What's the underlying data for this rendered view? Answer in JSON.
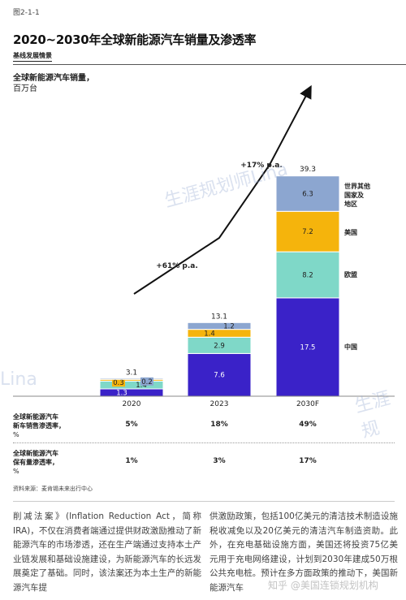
{
  "figure_number": "图2-1-1",
  "title": "2020~2030年全球新能源汽车销量及渗透率",
  "scenario_label": "基线发展情景",
  "y_label_line1": "全球新能源汽车销量，",
  "y_label_line2": "百万台",
  "colors": {
    "china": "#3a22c8",
    "europe": "#7fd8c8",
    "usa": "#f5b40c",
    "rest": "#8ca6d0"
  },
  "chart_data": {
    "type": "bar",
    "stacked": true,
    "categories": [
      "2020",
      "2023",
      "2030F"
    ],
    "series": [
      {
        "name": "中国",
        "values": [
          1.3,
          7.6,
          17.5
        ]
      },
      {
        "name": "欧盟",
        "values": [
          1.4,
          2.9,
          8.2
        ]
      },
      {
        "name": "美国",
        "values": [
          0.3,
          1.4,
          7.2
        ]
      },
      {
        "name": "世界其他国家及地区",
        "values": [
          0.2,
          1.2,
          6.3
        ]
      }
    ],
    "totals": [
      3.1,
      13.1,
      39.3
    ],
    "growth_annotations": [
      "+61% p.a.",
      "+17% p.a."
    ],
    "ylim": [
      0,
      39.3
    ]
  },
  "legend": {
    "rest_line1": "世界其他",
    "rest_line2": "国家及",
    "rest_line3": "地区",
    "usa": "美国",
    "europe": "欧盟",
    "china": "中国"
  },
  "rows": [
    {
      "label1": "全球新能源汽车",
      "label2": "新车销售渗透率，",
      "unit": "%",
      "values": [
        "5%",
        "18%",
        "49%"
      ]
    },
    {
      "label1": "全球新能源汽车",
      "label2": "保有量渗透率，",
      "unit": "%",
      "values": [
        "1%",
        "3%",
        "17%"
      ]
    }
  ],
  "source": "资料来源：麦肯锡未来出行中心",
  "body_left": "削减法案》(Inflation Reduction Act，简称IRA)，不仅在消费者端通过提供财政激励推动了新能源汽车的市场渗透，还在生产端通过支持本土产业链发展和基础设施建设，为新能源汽车的长远发展奠定了基础。同时，该法案还为本土生产的新能源汽车提",
  "body_right": "供激励政策，包括100亿美元的清洁技术制造设施税收减免以及20亿美元的清洁汽车制造资助。此外，在充电基础设施方面，美国还将投资75亿美元用于充电网络建设，计划到2030年建成50万根公共充电桩。预计在多方面政策的推动下，美国新能源汽车",
  "watermarks": [
    "生涯规划师Lina",
    "Lina",
    "生涯规",
    "知乎 @美国连锁规划机构"
  ]
}
